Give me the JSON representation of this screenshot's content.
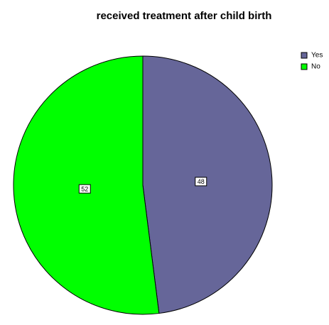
{
  "chart_data": {
    "type": "pie",
    "title": "received treatment after child birth",
    "categories": [
      "Yes",
      "No"
    ],
    "values": [
      48,
      52
    ],
    "colors": [
      "#666699",
      "#00ff00"
    ],
    "legend": "top-right"
  }
}
